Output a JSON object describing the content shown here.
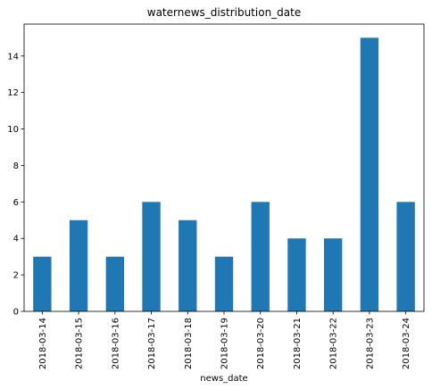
{
  "chart_data": {
    "type": "bar",
    "title": "waternews_distribution_date",
    "xlabel": "news_date",
    "ylabel": "",
    "categories": [
      "2018-03-14",
      "2018-03-15",
      "2018-03-16",
      "2018-03-17",
      "2018-03-18",
      "2018-03-19",
      "2018-03-20",
      "2018-03-21",
      "2018-03-22",
      "2018-03-23",
      "2018-03-24"
    ],
    "values": [
      3,
      5,
      3,
      6,
      5,
      3,
      6,
      4,
      4,
      15,
      6
    ],
    "ylim": [
      0,
      15.75
    ],
    "yticks": [
      0,
      2,
      4,
      6,
      8,
      10,
      12,
      14
    ],
    "bar_color": "#1f77b4",
    "grid": false,
    "legend": "none"
  }
}
